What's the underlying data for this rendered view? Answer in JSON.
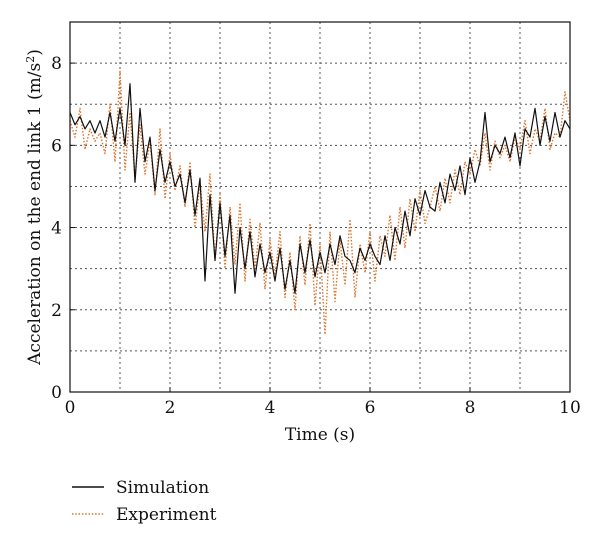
{
  "chart_data": {
    "type": "line",
    "xlabel": "Time (s)",
    "ylabel_main": "Acceleration on the end link 1 (m/s",
    "ylabel_sup": "2",
    "ylabel_close": ")",
    "xlim": [
      0,
      10
    ],
    "ylim": [
      0,
      9
    ],
    "xticks": [
      0,
      2,
      4,
      6,
      8,
      10
    ],
    "yticks": [
      0,
      2,
      4,
      6,
      8
    ],
    "x_minor_grid": [
      1,
      3,
      5,
      7,
      9
    ],
    "y_minor_grid": [
      1,
      3,
      5,
      7
    ],
    "grid": true,
    "legend_position": "bottom-left, below the plot",
    "series": [
      {
        "name": "Simulation",
        "color": "#111111",
        "style": "solid",
        "x": [
          0,
          0.1,
          0.2,
          0.3,
          0.4,
          0.5,
          0.6,
          0.7,
          0.8,
          0.9,
          1.0,
          1.1,
          1.2,
          1.3,
          1.4,
          1.5,
          1.6,
          1.7,
          1.8,
          1.9,
          2.0,
          2.1,
          2.2,
          2.3,
          2.4,
          2.5,
          2.6,
          2.7,
          2.8,
          2.9,
          3.0,
          3.1,
          3.2,
          3.3,
          3.4,
          3.5,
          3.6,
          3.7,
          3.8,
          3.9,
          4.0,
          4.1,
          4.2,
          4.3,
          4.4,
          4.5,
          4.6,
          4.7,
          4.8,
          4.9,
          5.0,
          5.1,
          5.2,
          5.3,
          5.4,
          5.5,
          5.6,
          5.7,
          5.8,
          5.9,
          6.0,
          6.1,
          6.2,
          6.3,
          6.4,
          6.5,
          6.6,
          6.7,
          6.8,
          6.9,
          7.0,
          7.1,
          7.2,
          7.3,
          7.4,
          7.5,
          7.6,
          7.7,
          7.8,
          7.9,
          8.0,
          8.1,
          8.2,
          8.3,
          8.4,
          8.5,
          8.6,
          8.7,
          8.8,
          8.9,
          9.0,
          9.1,
          9.2,
          9.3,
          9.4,
          9.5,
          9.6,
          9.7,
          9.8,
          9.9,
          10.0
        ],
        "values": [
          6.8,
          6.5,
          6.7,
          6.4,
          6.6,
          6.3,
          6.6,
          6.2,
          6.8,
          6.1,
          6.9,
          6.0,
          7.5,
          5.1,
          6.9,
          5.6,
          6.2,
          4.9,
          5.9,
          5.1,
          5.6,
          5.0,
          5.3,
          4.6,
          5.4,
          4.3,
          5.2,
          2.7,
          4.8,
          3.2,
          4.6,
          3.3,
          4.3,
          2.4,
          4.0,
          3.0,
          3.9,
          2.8,
          3.6,
          2.9,
          3.4,
          2.7,
          3.5,
          2.5,
          3.2,
          2.4,
          3.6,
          2.9,
          3.7,
          2.8,
          3.4,
          2.9,
          3.6,
          3.1,
          3.8,
          3.3,
          3.2,
          2.9,
          3.5,
          3.2,
          3.6,
          3.3,
          3.1,
          3.8,
          3.2,
          4.0,
          3.6,
          4.4,
          3.8,
          4.7,
          4.3,
          4.9,
          4.5,
          4.4,
          5.1,
          4.6,
          5.3,
          4.9,
          5.5,
          4.8,
          5.7,
          5.1,
          5.6,
          6.8,
          5.6,
          6.0,
          5.8,
          6.2,
          5.7,
          6.3,
          5.5,
          6.4,
          6.2,
          6.9,
          6.0,
          6.7,
          6.1,
          6.8,
          6.2,
          6.6,
          6.4
        ]
      },
      {
        "name": "Experiment",
        "color": "#e0732a",
        "style": "dotted",
        "x": [
          0,
          0.1,
          0.2,
          0.3,
          0.4,
          0.5,
          0.6,
          0.7,
          0.8,
          0.9,
          1.0,
          1.1,
          1.2,
          1.3,
          1.4,
          1.5,
          1.6,
          1.7,
          1.8,
          1.9,
          2.0,
          2.1,
          2.2,
          2.3,
          2.4,
          2.5,
          2.6,
          2.7,
          2.8,
          2.9,
          3.0,
          3.1,
          3.2,
          3.3,
          3.4,
          3.5,
          3.6,
          3.7,
          3.8,
          3.9,
          4.0,
          4.1,
          4.2,
          4.3,
          4.4,
          4.5,
          4.6,
          4.7,
          4.8,
          4.9,
          5.0,
          5.1,
          5.2,
          5.3,
          5.4,
          5.5,
          5.6,
          5.7,
          5.8,
          5.9,
          6.0,
          6.1,
          6.2,
          6.3,
          6.4,
          6.5,
          6.6,
          6.7,
          6.8,
          6.9,
          7.0,
          7.1,
          7.2,
          7.3,
          7.4,
          7.5,
          7.6,
          7.7,
          7.8,
          7.9,
          8.0,
          8.1,
          8.2,
          8.3,
          8.4,
          8.5,
          8.6,
          8.7,
          8.8,
          8.9,
          9.0,
          9.1,
          9.2,
          9.3,
          9.4,
          9.5,
          9.6,
          9.7,
          9.8,
          9.9,
          10.0
        ],
        "values": [
          6.6,
          6.2,
          6.9,
          5.9,
          6.4,
          6.1,
          6.3,
          5.8,
          7.0,
          5.6,
          7.8,
          5.4,
          6.8,
          5.2,
          6.5,
          5.3,
          6.1,
          4.8,
          6.4,
          4.7,
          5.8,
          4.9,
          5.5,
          4.5,
          5.6,
          4.0,
          5.1,
          3.9,
          5.3,
          3.2,
          4.8,
          3.0,
          4.5,
          3.1,
          4.6,
          2.7,
          4.2,
          3.0,
          4.1,
          2.5,
          3.7,
          2.8,
          3.9,
          2.3,
          3.4,
          2.0,
          3.8,
          2.6,
          4.1,
          2.1,
          3.6,
          1.4,
          3.9,
          2.2,
          3.7,
          2.6,
          4.2,
          2.3,
          3.6,
          2.9,
          3.9,
          2.7,
          3.8,
          3.3,
          4.3,
          3.2,
          4.5,
          3.5,
          4.7,
          3.9,
          4.9,
          4.1,
          4.5,
          5.0,
          4.4,
          5.2,
          4.6,
          5.4,
          4.8,
          5.6,
          5.3,
          5.9,
          5.5,
          6.3,
          5.4,
          6.1,
          5.7,
          6.0,
          5.6,
          6.2,
          5.9,
          6.6,
          5.8,
          6.4,
          6.1,
          6.9,
          5.9,
          6.3,
          6.2,
          7.3,
          6.6
        ]
      }
    ]
  }
}
